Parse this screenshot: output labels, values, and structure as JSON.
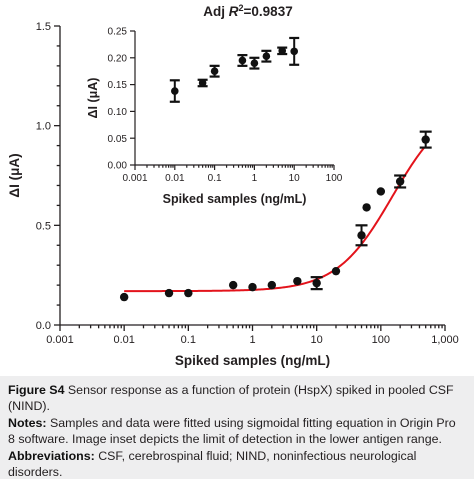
{
  "chart_data": [
    {
      "type": "scatter",
      "role": "main",
      "xscale": "log",
      "xlim": [
        0.001,
        1000
      ],
      "ylim": [
        0,
        1.5
      ],
      "xlabel": "Spiked samples (ng/mL)",
      "ylabel": "ΔI (μA)",
      "xticks": [
        0.001,
        0.01,
        0.1,
        1,
        10,
        100,
        1000
      ],
      "xtick_labels": [
        "0.001",
        "0.01",
        "0.1",
        "1",
        "10",
        "100",
        "1,000"
      ],
      "yticks": [
        0,
        0.5,
        1.0,
        1.5
      ],
      "ytick_labels": [
        "0.0",
        "0.5",
        "1.0",
        "1.5"
      ],
      "points": [
        {
          "x": 0.01,
          "y": 0.14
        },
        {
          "x": 0.05,
          "y": 0.16
        },
        {
          "x": 0.1,
          "y": 0.16
        },
        {
          "x": 0.5,
          "y": 0.2
        },
        {
          "x": 1,
          "y": 0.19
        },
        {
          "x": 2,
          "y": 0.2
        },
        {
          "x": 5,
          "y": 0.22
        },
        {
          "x": 10,
          "y": 0.21,
          "err": 0.03
        },
        {
          "x": 20,
          "y": 0.27
        },
        {
          "x": 50,
          "y": 0.45,
          "err": 0.05
        },
        {
          "x": 60,
          "y": 0.59
        },
        {
          "x": 100,
          "y": 0.67
        },
        {
          "x": 200,
          "y": 0.72,
          "err": 0.03
        },
        {
          "x": 500,
          "y": 0.93,
          "err": 0.04
        }
      ],
      "fit": {
        "bottom": 0.17,
        "top": 1.12,
        "log_ec50": 2.18,
        "hill": 1.0
      },
      "fit_color": "#e3131b"
    },
    {
      "type": "scatter",
      "role": "inset",
      "title": "Adj R²=0.9837",
      "title_prefix": "Adj ",
      "title_r": "R",
      "title_sup": "2",
      "title_value": "=0.9837",
      "xscale": "log",
      "xlim": [
        0.001,
        100
      ],
      "ylim": [
        0,
        0.25
      ],
      "xlabel": "Spiked samples (ng/mL)",
      "ylabel": "ΔI (μA)",
      "xticks": [
        0.001,
        0.01,
        0.1,
        1,
        10,
        100
      ],
      "xtick_labels": [
        "0.001",
        "0.01",
        "0.1",
        "1",
        "10",
        "100"
      ],
      "yticks": [
        0,
        0.05,
        0.1,
        0.15,
        0.2,
        0.25
      ],
      "ytick_labels": [
        "0.00",
        "0.05",
        "0.10",
        "0.15",
        "0.20",
        "0.25"
      ],
      "points": [
        {
          "x": 0.01,
          "y": 0.138,
          "err": 0.02
        },
        {
          "x": 0.05,
          "y": 0.153,
          "err": 0.006
        },
        {
          "x": 0.1,
          "y": 0.175,
          "err": 0.01
        },
        {
          "x": 0.5,
          "y": 0.195,
          "err": 0.01
        },
        {
          "x": 1,
          "y": 0.19,
          "err": 0.01
        },
        {
          "x": 2,
          "y": 0.203,
          "err": 0.01
        },
        {
          "x": 5,
          "y": 0.213,
          "err": 0.006
        },
        {
          "x": 10,
          "y": 0.212,
          "err": 0.025
        }
      ]
    }
  ],
  "caption": {
    "figure_label": "Figure S4",
    "figure_text": "Sensor response as a function of protein (HspX) spiked in pooled CSF (NIND).",
    "notes_label": "Notes:",
    "notes_text": "Samples and data were fitted using sigmoidal fitting equation in Origin Pro 8 software. Image inset depicts the limit of detection in the lower antigen range.",
    "abbr_label": "Abbreviations:",
    "abbr_text": "CSF, cerebrospinal fluid; NIND, noninfectious neurological disorders."
  }
}
